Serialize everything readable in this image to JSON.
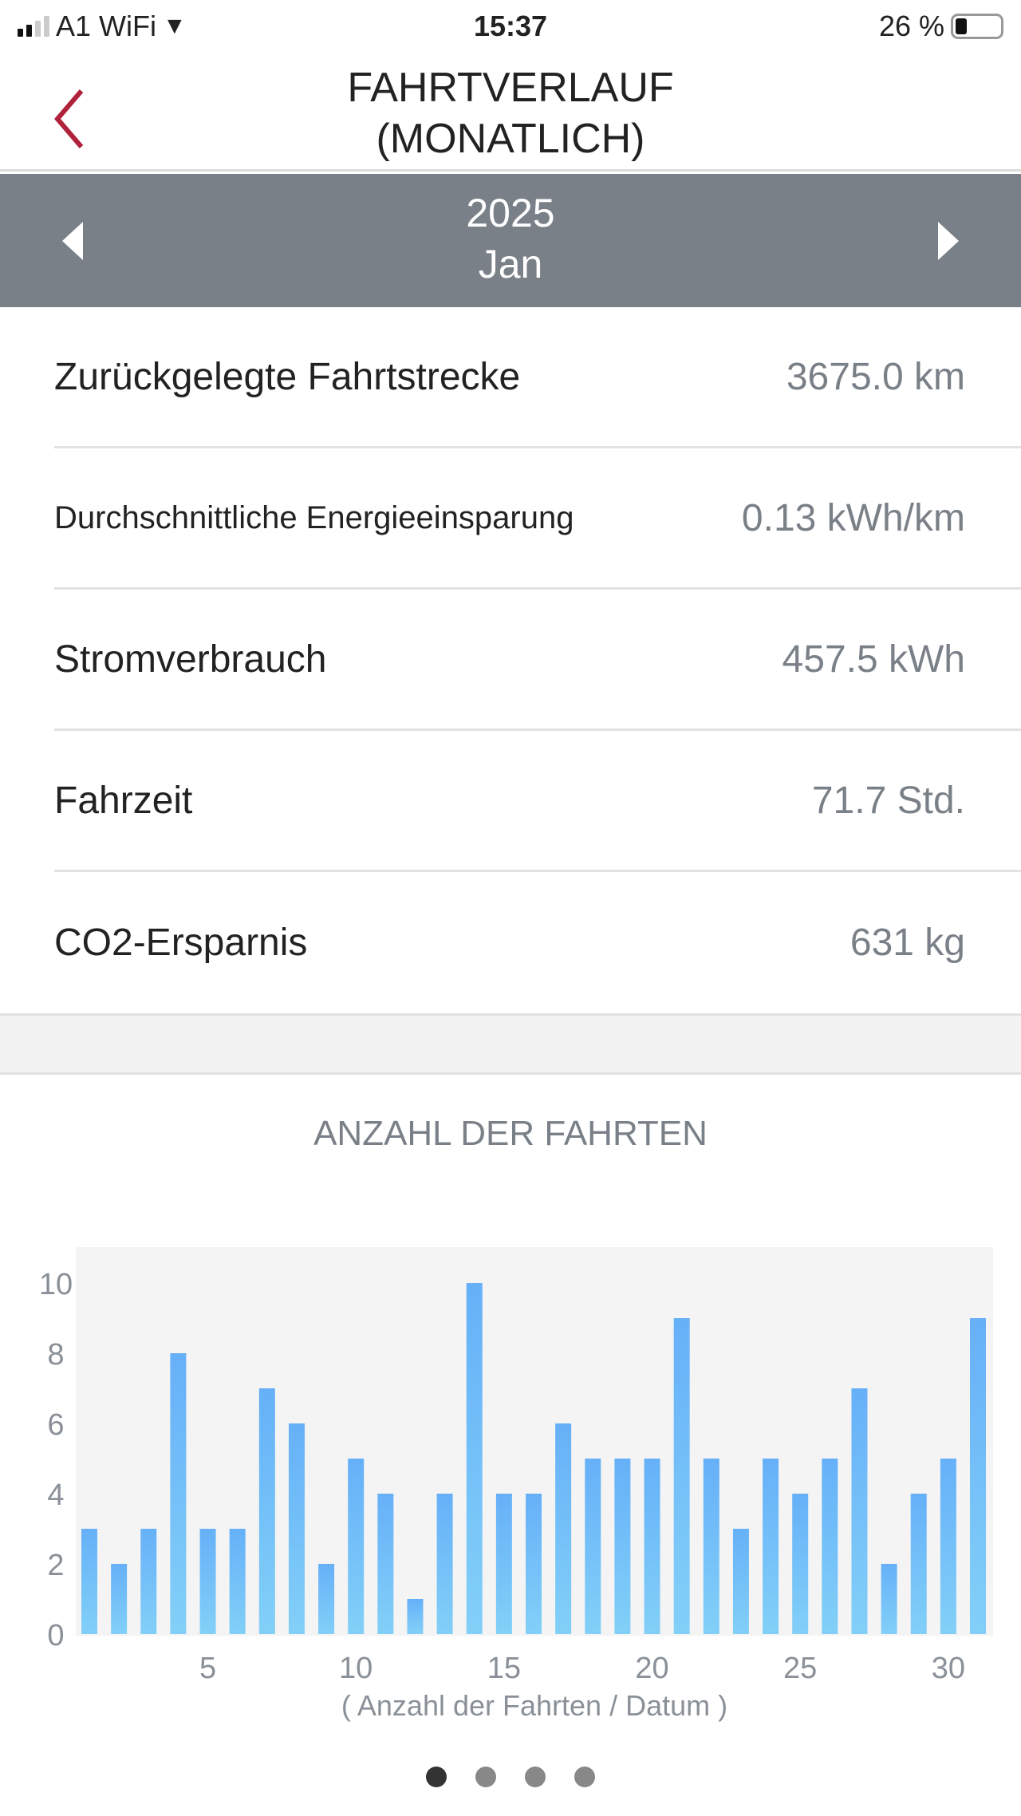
{
  "status_bar": {
    "carrier": "A1 WiFi",
    "time": "15:37",
    "battery": "26 %",
    "battery_level": 26
  },
  "header": {
    "title": "FAHRTVERLAUF (MONATLICH)",
    "accent": "#b0213a"
  },
  "period": {
    "year": "2025",
    "month": "Jan"
  },
  "stats": [
    {
      "label": "Zurückgelegte Fahrtstrecke",
      "value": "3675.0 km"
    },
    {
      "label": "Durchschnittliche Energieeinsparung",
      "value": "0.13 kWh/km"
    },
    {
      "label": "Stromverbrauch",
      "value": "457.5 kWh"
    },
    {
      "label": "Fahrzeit",
      "value": "71.7 Std."
    },
    {
      "label": "CO2-Ersparnis",
      "value": "631 kg"
    }
  ],
  "chart_data": {
    "type": "bar",
    "title": "ANZAHL DER FAHRTEN",
    "xlabel": "( Anzahl der Fahrten / Datum )",
    "ylabel": "",
    "x": [
      1,
      2,
      3,
      4,
      5,
      6,
      7,
      8,
      9,
      10,
      11,
      12,
      13,
      14,
      15,
      16,
      17,
      18,
      19,
      20,
      21,
      22,
      23,
      24,
      25,
      26,
      27,
      28,
      29,
      30,
      31
    ],
    "values": [
      3,
      2,
      3,
      8,
      3,
      3,
      7,
      6,
      2,
      5,
      4,
      1,
      4,
      10,
      4,
      4,
      6,
      5,
      5,
      5,
      9,
      5,
      3,
      5,
      4,
      5,
      7,
      2,
      4,
      5,
      9
    ],
    "ylim": [
      0,
      11
    ],
    "yticks": [
      0,
      2,
      4,
      6,
      8,
      10
    ],
    "xticks": [
      5,
      10,
      15,
      20,
      25,
      30
    ],
    "grid": false,
    "bar_color_top": "#66b0f8",
    "bar_color_bottom": "#82d0f8"
  },
  "pager": {
    "pages": 4,
    "current": 1
  }
}
